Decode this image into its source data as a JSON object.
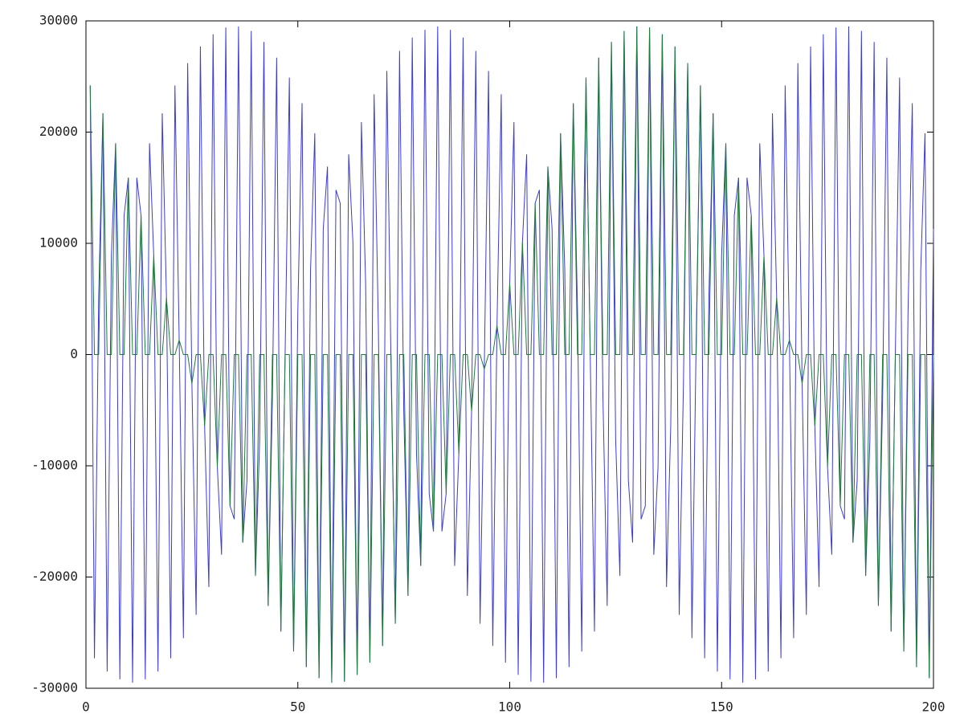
{
  "chart_data": {
    "type": "line",
    "x": [
      1,
      2,
      3,
      4,
      5,
      6,
      7,
      8,
      9,
      10,
      11,
      12,
      13,
      14,
      15,
      16,
      17,
      18,
      19,
      20,
      21,
      22,
      23,
      24,
      25,
      26,
      27,
      28,
      29,
      30,
      31,
      32,
      33,
      34,
      35,
      36,
      37,
      38,
      39,
      40,
      41,
      42,
      43,
      44,
      45,
      46,
      47,
      48,
      49,
      50,
      51,
      52,
      53,
      54,
      55,
      56,
      57,
      58,
      59,
      60,
      61,
      62,
      63,
      64,
      65,
      66,
      67,
      68,
      69,
      70,
      71,
      72,
      73,
      74,
      75,
      76,
      77,
      78,
      79,
      80,
      81,
      82,
      83,
      84,
      85,
      86,
      87,
      88,
      89,
      90,
      91,
      92,
      93,
      94,
      95,
      96,
      97,
      98,
      99,
      100,
      101,
      102,
      103,
      104,
      105,
      106,
      107,
      108,
      109,
      110,
      111,
      112,
      113,
      114,
      115,
      116,
      117,
      118,
      119,
      120,
      121,
      122,
      123,
      124,
      125,
      126,
      127,
      128,
      129,
      130,
      131,
      132,
      133,
      134,
      135,
      136,
      137,
      138,
      139,
      140,
      141,
      142,
      143,
      144,
      145,
      146,
      147,
      148,
      149,
      150,
      151,
      152,
      153,
      154,
      155,
      156,
      157,
      158,
      159,
      160,
      161,
      162,
      163,
      164,
      165,
      166,
      167,
      168,
      169,
      170,
      171,
      172,
      173,
      174,
      175,
      176,
      177,
      178,
      179,
      180,
      181,
      182,
      183,
      184,
      185,
      186,
      187,
      188,
      189,
      190,
      191,
      192,
      193,
      194,
      195,
      196,
      197,
      198,
      199,
      200
    ],
    "series": [
      {
        "color": "#3b3bd6",
        "values": [
          24200,
          -27300,
          5100,
          21700,
          -28500,
          8900,
          19000,
          -29200,
          12500,
          15900,
          -29500,
          15900,
          12500,
          -29200,
          19000,
          8900,
          -28500,
          21700,
          5100,
          -27300,
          24200,
          1300,
          -25500,
          26200,
          -2600,
          -23400,
          27700,
          -6400,
          -20900,
          28800,
          -10100,
          -18000,
          29400,
          -13600,
          -14800,
          29500,
          -16900,
          -11300,
          29100,
          -19900,
          -7600,
          28100,
          -22600,
          -3900,
          26700,
          -24900,
          0,
          24900,
          -26700,
          3900,
          22600,
          -28100,
          7600,
          19900,
          -29100,
          11300,
          16900,
          -29500,
          14800,
          13600,
          -29400,
          18000,
          10100,
          -28800,
          20900,
          6400,
          -27700,
          23400,
          2600,
          -26200,
          25500,
          -1300,
          -24200,
          27300,
          -5100,
          -21700,
          28500,
          -8900,
          -19000,
          29200,
          -12500,
          -15900,
          29500,
          -15900,
          -12500,
          29200,
          -19000,
          -8900,
          28500,
          -21700,
          -5100,
          27300,
          -24200,
          -1300,
          25500,
          -26200,
          2600,
          23400,
          -27700,
          6400,
          20900,
          -28800,
          10100,
          18000,
          -29400,
          13600,
          14800,
          -29500,
          16900,
          11300,
          -29100,
          19900,
          7600,
          -28100,
          22600,
          3900,
          -26700,
          24900,
          0,
          -24900,
          26700,
          -3900,
          -22600,
          28100,
          -7600,
          -19900,
          29100,
          -11300,
          -16900,
          29500,
          -14800,
          -13600,
          29400,
          -18000,
          -10100,
          28800,
          -20900,
          -6400,
          27700,
          -23400,
          -2600,
          26200,
          -25500,
          1300,
          24200,
          -27300,
          5100,
          21700,
          -28500,
          8900,
          19000,
          -29200,
          12500,
          15900,
          -29500,
          15900,
          12500,
          -29200,
          19000,
          8900,
          -28500,
          21700,
          5100,
          -27300,
          24200,
          1300,
          -25500,
          26200,
          -2600,
          -23400,
          27700,
          -6400,
          -20900,
          28800,
          -10100,
          -18000,
          29400,
          -13600,
          -14800,
          29500,
          -16900,
          -11300,
          29100,
          -19900,
          -7600,
          28100,
          -22600,
          -3900,
          26700,
          -24900,
          0,
          24900,
          -26700,
          3900,
          22600,
          -28100,
          7600,
          19900,
          -29100,
          11300
        ]
      },
      {
        "color": "#1f7a3a",
        "values": [
          24200,
          0,
          0,
          21700,
          0,
          0,
          19000,
          0,
          0,
          15900,
          0,
          0,
          12500,
          0,
          0,
          8900,
          0,
          0,
          5100,
          0,
          0,
          1300,
          0,
          0,
          -2600,
          0,
          0,
          -6400,
          0,
          0,
          -10100,
          0,
          0,
          -13600,
          0,
          0,
          -16900,
          0,
          0,
          -19900,
          0,
          0,
          -22600,
          0,
          0,
          -24900,
          0,
          0,
          -26700,
          0,
          0,
          -28100,
          0,
          0,
          -29100,
          0,
          0,
          -29500,
          0,
          0,
          -29400,
          0,
          0,
          -28800,
          0,
          0,
          -27700,
          0,
          0,
          -26200,
          0,
          0,
          -24200,
          0,
          0,
          -21700,
          0,
          0,
          -19000,
          0,
          0,
          -15900,
          0,
          0,
          -12500,
          0,
          0,
          -8900,
          0,
          0,
          -5100,
          0,
          0,
          -1300,
          0,
          0,
          2600,
          0,
          0,
          6400,
          0,
          0,
          10100,
          0,
          0,
          13600,
          0,
          0,
          16900,
          0,
          0,
          19900,
          0,
          0,
          22600,
          0,
          0,
          24900,
          0,
          0,
          26700,
          0,
          0,
          28100,
          0,
          0,
          29100,
          0,
          0,
          29500,
          0,
          0,
          29400,
          0,
          0,
          28800,
          0,
          0,
          27700,
          0,
          0,
          26200,
          0,
          0,
          24200,
          0,
          0,
          21700,
          0,
          0,
          19000,
          0,
          0,
          15900,
          0,
          0,
          12500,
          0,
          0,
          8900,
          0,
          0,
          5100,
          0,
          0,
          1300,
          0,
          0,
          -2600,
          0,
          0,
          -6400,
          0,
          0,
          -10100,
          0,
          0,
          -13600,
          0,
          0,
          -16900,
          0,
          0,
          -19900,
          0,
          0,
          -22600,
          0,
          0,
          -24900,
          0,
          0,
          -26700,
          0,
          0,
          -28100,
          0,
          0,
          -29100,
          0
        ]
      }
    ],
    "xlim": [
      0,
      200
    ],
    "xticks": [
      0,
      50,
      100,
      150,
      200
    ],
    "ylim": [
      -30000,
      30000
    ],
    "yticks": [
      -30000,
      -20000,
      -10000,
      0,
      10000,
      20000,
      30000
    ],
    "grid": false
  }
}
